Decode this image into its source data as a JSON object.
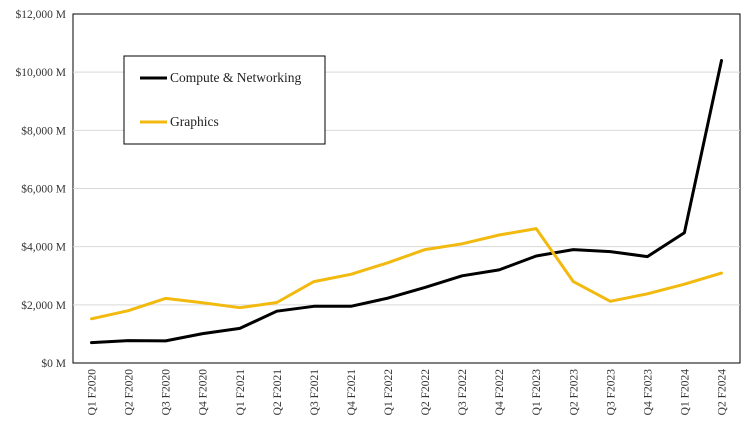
{
  "chart_data": {
    "type": "line",
    "title": "",
    "xlabel": "",
    "ylabel": "",
    "categories": [
      "Q1 F2020",
      "Q2 F2020",
      "Q3 F2020",
      "Q4 F2020",
      "Q1 F2021",
      "Q2 F2021",
      "Q3 F2021",
      "Q4 F2021",
      "Q1 F2022",
      "Q2 F2022",
      "Q3 F2022",
      "Q4 F2022",
      "Q1 F2023",
      "Q2 F2023",
      "Q3 F2023",
      "Q4 F2023",
      "Q1 F2024",
      "Q2 F2024"
    ],
    "ylim": [
      0,
      12000
    ],
    "y_ticks": [
      0,
      2000,
      4000,
      6000,
      8000,
      10000,
      12000
    ],
    "y_tick_labels": [
      "$0 M",
      "$2,000 M",
      "$4,000 M",
      "$6,000 M",
      "$8,000 M",
      "$10,000 M",
      "$12,000 M"
    ],
    "grid": true,
    "legend_position": "top-left",
    "series": [
      {
        "name": "Compute & Networking",
        "color": "#000000",
        "values": [
          700,
          770,
          760,
          1010,
          1190,
          1780,
          1950,
          1950,
          2230,
          2600,
          3000,
          3200,
          3680,
          3900,
          3830,
          3660,
          4480,
          10400
        ]
      },
      {
        "name": "Graphics",
        "color": "#f2b90f",
        "values": [
          1520,
          1800,
          2220,
          2070,
          1900,
          2080,
          2800,
          3050,
          3450,
          3900,
          4100,
          4400,
          4620,
          2800,
          2120,
          2380,
          2710,
          3090
        ]
      }
    ]
  }
}
